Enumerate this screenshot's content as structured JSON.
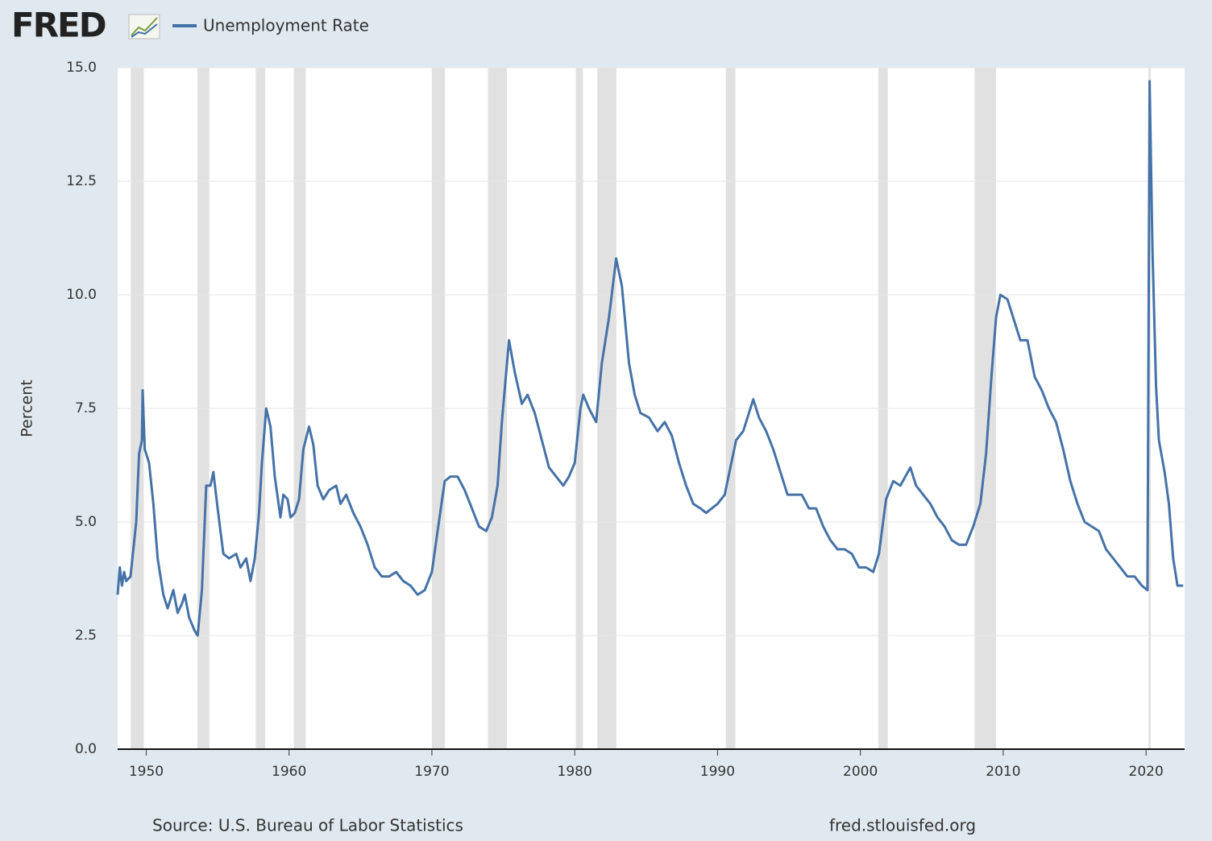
{
  "chart_data": {
    "type": "line",
    "logo": "FRED",
    "source": "Source: U.S. Bureau of Labor Statistics",
    "url": "fred.stlouisfed.org",
    "ylabel": "Percent",
    "xlim": [
      1948.0,
      2022.7
    ],
    "ylim": [
      0,
      15
    ],
    "yticks": [
      {
        "value": 0,
        "label": "0.0"
      },
      {
        "value": 2.5,
        "label": "2.5"
      },
      {
        "value": 5,
        "label": "5.0"
      },
      {
        "value": 7.5,
        "label": "7.5"
      },
      {
        "value": 10,
        "label": "10.0"
      },
      {
        "value": 12.5,
        "label": "12.5"
      },
      {
        "value": 15,
        "label": "15.0"
      }
    ],
    "xticks": [
      1950,
      1960,
      1970,
      1980,
      1990,
      2000,
      2010,
      2020
    ],
    "grid": true,
    "recessions": [
      [
        1948.92,
        1949.83
      ],
      [
        1953.58,
        1954.42
      ],
      [
        1957.67,
        1958.33
      ],
      [
        1960.33,
        1961.17
      ],
      [
        1970.0,
        1970.92
      ],
      [
        1973.92,
        1975.25
      ],
      [
        1980.08,
        1980.58
      ],
      [
        1981.58,
        1982.92
      ],
      [
        1990.58,
        1991.25
      ],
      [
        2001.25,
        2001.92
      ],
      [
        2008.0,
        2009.5
      ],
      [
        2020.17,
        2020.33
      ]
    ],
    "recession_color": "#e1e1e1",
    "x": [
      1948.0,
      1948.15,
      1948.3,
      1948.45,
      1948.6,
      1948.9,
      1949.3,
      1949.5,
      1949.7,
      1949.75,
      1949.9,
      1950.2,
      1950.5,
      1950.8,
      1951.2,
      1951.5,
      1951.9,
      1952.2,
      1952.5,
      1952.7,
      1953.0,
      1953.4,
      1953.6,
      1953.9,
      1954.2,
      1954.5,
      1954.7,
      1955.0,
      1955.4,
      1955.8,
      1956.3,
      1956.6,
      1957.0,
      1957.3,
      1957.6,
      1957.9,
      1958.1,
      1958.4,
      1958.7,
      1959.0,
      1959.4,
      1959.6,
      1959.9,
      1960.1,
      1960.4,
      1960.7,
      1961.0,
      1961.4,
      1961.7,
      1962.0,
      1962.4,
      1962.8,
      1963.3,
      1963.6,
      1964.0,
      1964.5,
      1965.0,
      1965.5,
      1966.0,
      1966.5,
      1967.0,
      1967.5,
      1968.0,
      1968.5,
      1969.0,
      1969.5,
      1970.0,
      1970.4,
      1970.9,
      1971.3,
      1971.8,
      1972.3,
      1972.8,
      1973.3,
      1973.8,
      1974.2,
      1974.6,
      1974.9,
      1975.4,
      1975.8,
      1976.3,
      1976.7,
      1977.2,
      1977.7,
      1978.2,
      1978.7,
      1979.2,
      1979.6,
      1980.0,
      1980.4,
      1980.6,
      1981.0,
      1981.5,
      1981.9,
      1982.4,
      1982.9,
      1983.3,
      1983.8,
      1984.2,
      1984.6,
      1985.2,
      1985.8,
      1986.3,
      1986.8,
      1987.3,
      1987.8,
      1988.3,
      1988.8,
      1989.2,
      1989.6,
      1990.0,
      1990.5,
      1990.9,
      1991.3,
      1991.8,
      1992.5,
      1992.9,
      1993.4,
      1993.9,
      1994.4,
      1994.9,
      1995.4,
      1995.9,
      1996.4,
      1996.9,
      1997.4,
      1997.9,
      1998.4,
      1998.9,
      1999.4,
      1999.9,
      2000.4,
      2000.9,
      2001.3,
      2001.8,
      2002.3,
      2002.8,
      2003.5,
      2003.9,
      2004.4,
      2004.9,
      2005.4,
      2005.9,
      2006.4,
      2006.9,
      2007.4,
      2007.9,
      2008.4,
      2008.8,
      2009.2,
      2009.5,
      2009.8,
      2010.3,
      2010.8,
      2011.2,
      2011.7,
      2012.2,
      2012.7,
      2013.2,
      2013.7,
      2014.2,
      2014.7,
      2015.2,
      2015.7,
      2016.2,
      2016.7,
      2017.2,
      2017.7,
      2018.2,
      2018.7,
      2019.2,
      2019.7,
      2020.1,
      2020.25,
      2020.45,
      2020.7,
      2020.9,
      2021.3,
      2021.6,
      2021.9,
      2022.2,
      2022.6
    ],
    "series": [
      {
        "name": "Unemployment Rate",
        "color": "#4572a7",
        "values": [
          3.4,
          4.0,
          3.6,
          3.9,
          3.7,
          3.8,
          5.0,
          6.5,
          6.8,
          7.9,
          6.6,
          6.3,
          5.4,
          4.2,
          3.4,
          3.1,
          3.5,
          3.0,
          3.2,
          3.4,
          2.9,
          2.6,
          2.5,
          3.5,
          5.8,
          5.8,
          6.1,
          5.3,
          4.3,
          4.2,
          4.3,
          4.0,
          4.2,
          3.7,
          4.2,
          5.2,
          6.3,
          7.5,
          7.1,
          6.0,
          5.1,
          5.6,
          5.5,
          5.1,
          5.2,
          5.5,
          6.6,
          7.1,
          6.7,
          5.8,
          5.5,
          5.7,
          5.8,
          5.4,
          5.6,
          5.2,
          4.9,
          4.5,
          4.0,
          3.8,
          3.8,
          3.9,
          3.7,
          3.6,
          3.4,
          3.5,
          3.9,
          4.8,
          5.9,
          6.0,
          6.0,
          5.7,
          5.3,
          4.9,
          4.8,
          5.1,
          5.8,
          7.2,
          9.0,
          8.3,
          7.6,
          7.8,
          7.4,
          6.8,
          6.2,
          6.0,
          5.8,
          6.0,
          6.3,
          7.5,
          7.8,
          7.5,
          7.2,
          8.5,
          9.5,
          10.8,
          10.2,
          8.5,
          7.8,
          7.4,
          7.3,
          7.0,
          7.2,
          6.9,
          6.3,
          5.8,
          5.4,
          5.3,
          5.2,
          5.3,
          5.4,
          5.6,
          6.2,
          6.8,
          7.0,
          7.7,
          7.3,
          7.0,
          6.6,
          6.1,
          5.6,
          5.6,
          5.6,
          5.3,
          5.3,
          4.9,
          4.6,
          4.4,
          4.4,
          4.3,
          4.0,
          4.0,
          3.9,
          4.3,
          5.5,
          5.9,
          5.8,
          6.2,
          5.8,
          5.6,
          5.4,
          5.1,
          4.9,
          4.6,
          4.5,
          4.5,
          4.9,
          5.4,
          6.5,
          8.3,
          9.5,
          10.0,
          9.9,
          9.4,
          9.0,
          9.0,
          8.2,
          7.9,
          7.5,
          7.2,
          6.6,
          5.9,
          5.4,
          5.0,
          4.9,
          4.8,
          4.4,
          4.2,
          4.0,
          3.8,
          3.8,
          3.6,
          3.5,
          14.7,
          11.0,
          8.0,
          6.8,
          6.1,
          5.4,
          4.2,
          3.6,
          3.6
        ]
      }
    ]
  }
}
